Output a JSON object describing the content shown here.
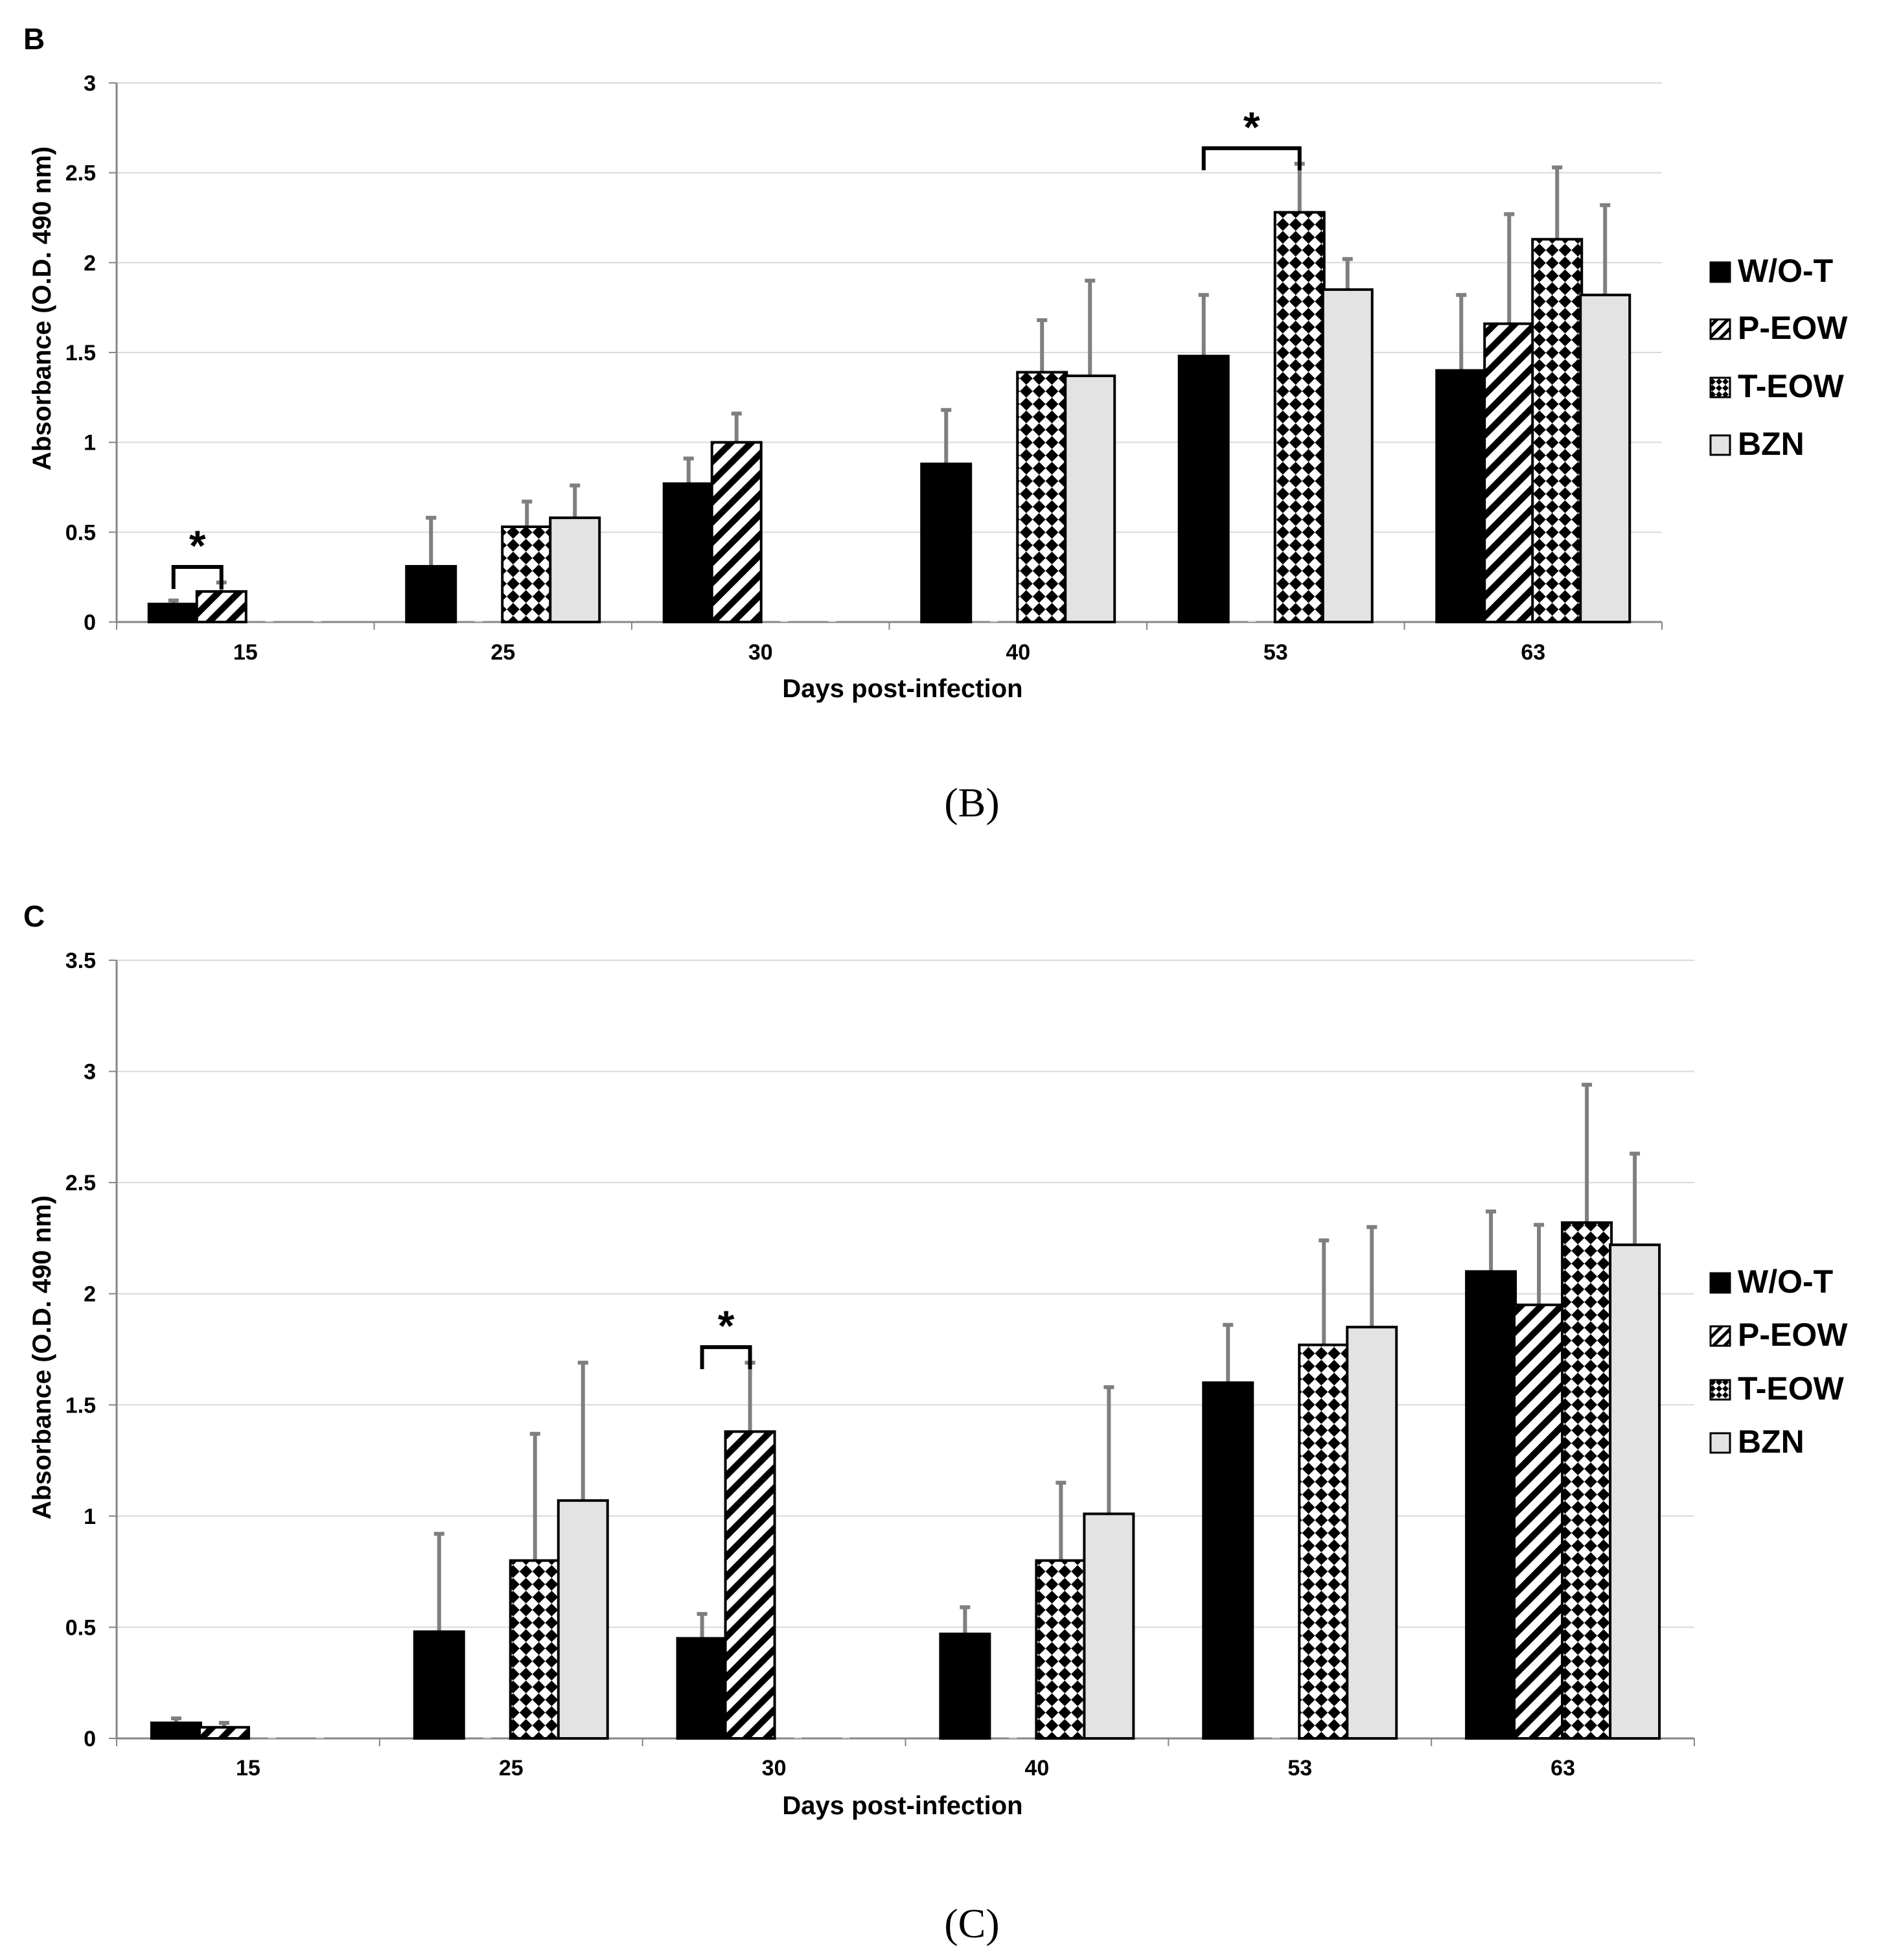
{
  "colors": {
    "wot": "#000000",
    "bzn": "#e3e3e3",
    "error_bar": "#7f7f7f",
    "grid": "#d9d9d9",
    "axis": "#868686",
    "text": "#000000"
  },
  "chart_data": [
    {
      "type": "bar",
      "panel_letter": "B",
      "caption": "(B)",
      "xlabel": "Days post-infection",
      "ylabel": "Absorbance (O.D. 490 nm)",
      "ylim": [
        0,
        3
      ],
      "yticks": [
        "0",
        "0.5",
        "1",
        "1.5",
        "2",
        "2.5",
        "3"
      ],
      "grid": true,
      "legend_position": "right",
      "categories": [
        "15",
        "25",
        "30",
        "40",
        "53",
        "63"
      ],
      "series": [
        {
          "name": "W/O-T",
          "pattern": "solid",
          "values": [
            0.1,
            0.31,
            0.77,
            0.88,
            1.48,
            1.4
          ],
          "errors": [
            0.02,
            0.27,
            0.14,
            0.3,
            0.34,
            0.42
          ]
        },
        {
          "name": "P-EOW",
          "pattern": "diagonal",
          "values": [
            0.17,
            0,
            1.0,
            0,
            0,
            1.66
          ],
          "errors": [
            0.05,
            0,
            0.16,
            0,
            0,
            0.61
          ]
        },
        {
          "name": "T-EOW",
          "pattern": "checker",
          "values": [
            0,
            0.53,
            0,
            1.39,
            2.28,
            2.13
          ],
          "errors": [
            0,
            0.14,
            0,
            0.29,
            0.27,
            0.4
          ]
        },
        {
          "name": "BZN",
          "pattern": "light",
          "values": [
            0,
            0.58,
            0,
            1.37,
            1.85,
            1.82
          ],
          "errors": [
            0,
            0.18,
            0,
            0.53,
            0.17,
            0.5
          ]
        }
      ],
      "significance": [
        {
          "category": "15",
          "from_series": 0,
          "to_series": 1,
          "label": "*"
        },
        {
          "category": "53",
          "from_series": 0,
          "to_series": 2,
          "label": "*"
        }
      ]
    },
    {
      "type": "bar",
      "panel_letter": "C",
      "caption": "(C)",
      "xlabel": "Days post-infection",
      "ylabel": "Absorbance (O.D. 490 nm)",
      "ylim": [
        0,
        3.5
      ],
      "yticks": [
        "0",
        "0.5",
        "1",
        "1.5",
        "2",
        "2.5",
        "3",
        "3.5"
      ],
      "grid": true,
      "legend_position": "right",
      "categories": [
        "15",
        "25",
        "30",
        "40",
        "53",
        "63"
      ],
      "series": [
        {
          "name": "W/O-T",
          "pattern": "solid",
          "values": [
            0.07,
            0.48,
            0.45,
            0.47,
            1.6,
            2.1
          ],
          "errors": [
            0.02,
            0.44,
            0.11,
            0.12,
            0.26,
            0.27
          ]
        },
        {
          "name": "P-EOW",
          "pattern": "diagonal",
          "values": [
            0.05,
            0,
            1.38,
            0,
            0,
            1.95
          ],
          "errors": [
            0.02,
            0,
            0.31,
            0,
            0,
            0.36
          ]
        },
        {
          "name": "T-EOW",
          "pattern": "checker",
          "values": [
            0,
            0.8,
            0,
            0.8,
            1.77,
            2.32
          ],
          "errors": [
            0,
            0.57,
            0,
            0.35,
            0.47,
            0.62
          ]
        },
        {
          "name": "BZN",
          "pattern": "light",
          "values": [
            0,
            1.07,
            0,
            1.01,
            1.85,
            2.22
          ],
          "errors": [
            0,
            0.62,
            0,
            0.57,
            0.45,
            0.41
          ]
        }
      ],
      "significance": [
        {
          "category": "30",
          "from_series": 0,
          "to_series": 1,
          "label": "*"
        }
      ]
    }
  ]
}
